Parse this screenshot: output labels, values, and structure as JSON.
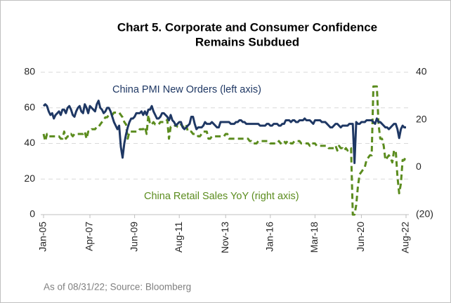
{
  "chart_data": {
    "type": "line",
    "title": "Chart 5. Corporate and Consumer Confidence",
    "subtitle": "Remains Subdued",
    "categories": [
      "Jan-05",
      null,
      null,
      null,
      null,
      null,
      null,
      null,
      null,
      null,
      null,
      null,
      null,
      null,
      null,
      null,
      null,
      null,
      null,
      null,
      null,
      null,
      null,
      null,
      null,
      null,
      null,
      "Apr-07",
      null,
      null,
      null,
      null,
      null,
      null,
      null,
      null,
      null,
      null,
      null,
      null,
      null,
      null,
      null,
      null,
      null,
      null,
      null,
      null,
      null,
      null,
      null,
      null,
      null,
      "Jun-09",
      null,
      null,
      null,
      null,
      null,
      null,
      null,
      null,
      null,
      null,
      null,
      null,
      null,
      null,
      null,
      null,
      null,
      null,
      null,
      null,
      null,
      null,
      null,
      null,
      null,
      "Aug-11",
      null,
      null,
      null,
      null,
      null,
      null,
      null,
      null,
      null,
      null,
      null,
      null,
      null,
      null,
      null,
      null,
      null,
      null,
      null,
      null,
      null,
      null,
      null,
      null,
      null,
      null,
      "Nov-13",
      null,
      null,
      null,
      null,
      null,
      null,
      null,
      null,
      null,
      null,
      null,
      null,
      null,
      null,
      null,
      null,
      null,
      null,
      null,
      null,
      null,
      null,
      null,
      null,
      null,
      "Jan-16",
      null,
      null,
      null,
      null,
      null,
      null,
      null,
      null,
      null,
      null,
      null,
      null,
      null,
      null,
      null,
      null,
      null,
      null,
      null,
      null,
      null,
      null,
      null,
      null,
      null,
      "Mar-18",
      null,
      null,
      null,
      null,
      null,
      null,
      null,
      null,
      null,
      null,
      null,
      null,
      null,
      null,
      null,
      null,
      null,
      null,
      null,
      null,
      null,
      null,
      null,
      null,
      null,
      null,
      "Jun-20",
      null,
      null,
      null,
      null,
      null,
      null,
      null,
      null,
      null,
      null,
      null,
      null,
      null,
      null,
      null,
      null,
      null,
      null,
      null,
      null,
      null,
      null,
      null,
      null,
      null,
      "Aug-22"
    ],
    "series": [
      {
        "name": "China PMI New Orders (left axis)",
        "color": "#1f3864",
        "axis": "y",
        "values": [
          61,
          62,
          61,
          58,
          56,
          57,
          54,
          56,
          57,
          58,
          56,
          59,
          59,
          57,
          60,
          61,
          59,
          56,
          55,
          58,
          60,
          61,
          58,
          57,
          62,
          60,
          57,
          61,
          60,
          59,
          58,
          62,
          64,
          60,
          59,
          57,
          58,
          60,
          60,
          58,
          55,
          52,
          50,
          48,
          50,
          38,
          32,
          40,
          45,
          49,
          52,
          54,
          54,
          55,
          57,
          57,
          57,
          58,
          56,
          58,
          56,
          59,
          59,
          61,
          58,
          56,
          54,
          54,
          55,
          57,
          57,
          56,
          55,
          53,
          56,
          53,
          52,
          50,
          51,
          52,
          52,
          49,
          48,
          49,
          50,
          51,
          55,
          55,
          51,
          48,
          49,
          49,
          49,
          50,
          52,
          51,
          51,
          51,
          52,
          51,
          50,
          49,
          49,
          52,
          52,
          52,
          52,
          52,
          52,
          51,
          51,
          51,
          52,
          52,
          53,
          53,
          52,
          52,
          51,
          51,
          51,
          51,
          51,
          51,
          51,
          51,
          50,
          50,
          50,
          50,
          51,
          51,
          50,
          50,
          51,
          51,
          51,
          50,
          50,
          51,
          51,
          53,
          53,
          53,
          52,
          53,
          53,
          52,
          52,
          53,
          53,
          53,
          54,
          53,
          53,
          53,
          52,
          51,
          53,
          53,
          53,
          53,
          52,
          52,
          52,
          51,
          50,
          49,
          49,
          50,
          51,
          51,
          50,
          49,
          50,
          50,
          50,
          50,
          51,
          51,
          51,
          29,
          52,
          51,
          51,
          52,
          52,
          52,
          53,
          53,
          53,
          53,
          52,
          51,
          54,
          52,
          52,
          51,
          50,
          49,
          49,
          48,
          49,
          50,
          51,
          51,
          48,
          43,
          48,
          50,
          49,
          49
        ]
      },
      {
        "name": "China Retail Sales YoY (right axis)",
        "color": "#5b8c1e",
        "axis": "y2",
        "values": [
          14,
          11,
          14,
          13,
          13,
          13,
          13,
          13,
          13,
          13,
          12,
          12,
          15,
          12,
          13,
          13,
          14,
          13,
          14,
          14,
          14,
          14,
          14,
          14,
          15,
          12,
          15,
          15,
          16,
          16,
          16,
          17,
          17,
          18,
          19,
          20,
          21,
          21,
          22,
          22,
          22,
          23,
          23,
          23,
          23,
          22,
          21,
          19,
          18,
          12,
          15,
          15,
          15,
          15,
          15,
          15,
          16,
          16,
          16,
          17,
          14,
          22,
          18,
          18,
          19,
          18,
          18,
          18,
          19,
          19,
          19,
          19,
          20,
          12,
          17,
          17,
          17,
          18,
          17,
          17,
          18,
          17,
          17,
          18,
          15,
          15,
          15,
          14,
          14,
          14,
          13,
          13,
          14,
          15,
          15,
          15,
          12,
          12,
          13,
          13,
          13,
          13,
          13,
          13,
          13,
          13,
          14,
          14,
          12,
          12,
          12,
          12,
          12,
          12,
          12,
          12,
          12,
          12,
          12,
          12,
          11,
          11,
          10,
          10,
          10,
          11,
          11,
          11,
          11,
          11,
          11,
          11,
          10,
          10,
          10,
          10,
          10,
          11,
          10,
          11,
          11,
          10,
          11,
          11,
          10,
          10,
          11,
          11,
          11,
          11,
          10,
          10,
          10,
          10,
          10,
          9,
          10,
          10,
          10,
          9,
          9,
          9,
          9,
          9,
          9,
          9,
          8,
          8,
          8,
          8,
          9,
          7,
          9,
          8,
          8,
          7,
          8,
          7,
          8,
          8,
          -20,
          -20,
          -16,
          -8,
          -3,
          -2,
          -1,
          0,
          3,
          4,
          5,
          5,
          34,
          34,
          34,
          18,
          12,
          12,
          9,
          3,
          4,
          5,
          4,
          2,
          7,
          7,
          -4,
          -11,
          -7,
          3,
          3,
          5
        ]
      }
    ],
    "ylim": [
      0,
      80
    ],
    "yticks": [
      0,
      20,
      40,
      60,
      80
    ],
    "y2lim": [
      -20,
      40
    ],
    "y2ticks": [
      {
        "value": -20,
        "label": "(20)"
      },
      0,
      20,
      40
    ],
    "grid": true,
    "annotations": [
      "China PMI New Orders (left axis)",
      "China Retail Sales YoY (right axis)"
    ],
    "source": "As of 08/31/22; Source: Bloomberg"
  }
}
